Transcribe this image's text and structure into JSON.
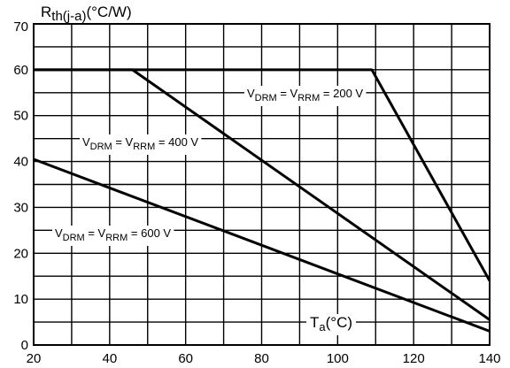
{
  "chart_data": {
    "type": "line",
    "ylabel_main": "R",
    "ylabel_sub": "th(j-a)",
    "ylabel_unit": "(°C/W)",
    "xlabel_main": "T",
    "xlabel_sub": "a",
    "xlabel_unit": "(°C)",
    "xlim": [
      20,
      140
    ],
    "ylim": [
      0,
      70
    ],
    "x_ticks": [
      20,
      40,
      60,
      80,
      100,
      120,
      140
    ],
    "y_ticks": [
      0,
      10,
      20,
      30,
      40,
      50,
      60,
      70
    ],
    "grid": true,
    "series": [
      {
        "label_parts": [
          "V",
          "DRM",
          " = V",
          "RRM",
          " = 200 V"
        ],
        "points": [
          [
            20,
            60
          ],
          [
            109,
            60
          ],
          [
            140,
            14
          ]
        ]
      },
      {
        "label_parts": [
          "V",
          "DRM",
          " = V",
          "RRM",
          " = 400 V"
        ],
        "points": [
          [
            20,
            60
          ],
          [
            46,
            60
          ],
          [
            140,
            5.5
          ]
        ]
      },
      {
        "label_parts": [
          "V",
          "DRM",
          " = V",
          "RRM",
          " = 600 V"
        ],
        "points": [
          [
            20,
            40.5
          ],
          [
            140,
            3
          ]
        ]
      }
    ]
  }
}
